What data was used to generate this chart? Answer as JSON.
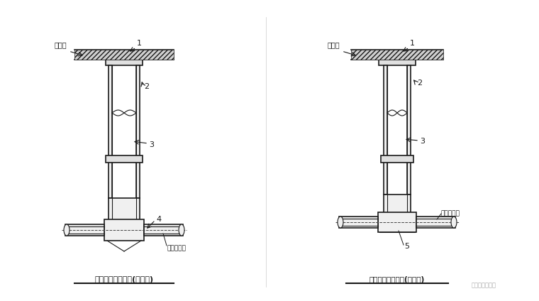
{
  "background_color": "#ffffff",
  "line_color": "#1a1a1a",
  "hatch_color": "#1a1a1a",
  "title_left": "非防护井盖检查井(有流槽)",
  "title_right": "非防护井盖检查井(无流槽)",
  "label_fei_dao_lu": "非道路",
  "label_di_pai": "埋地排水管",
  "label_di_pai2": "埋地排水管",
  "watermark": "给水电知识平台",
  "fig_width": 7.6,
  "fig_height": 4.24
}
